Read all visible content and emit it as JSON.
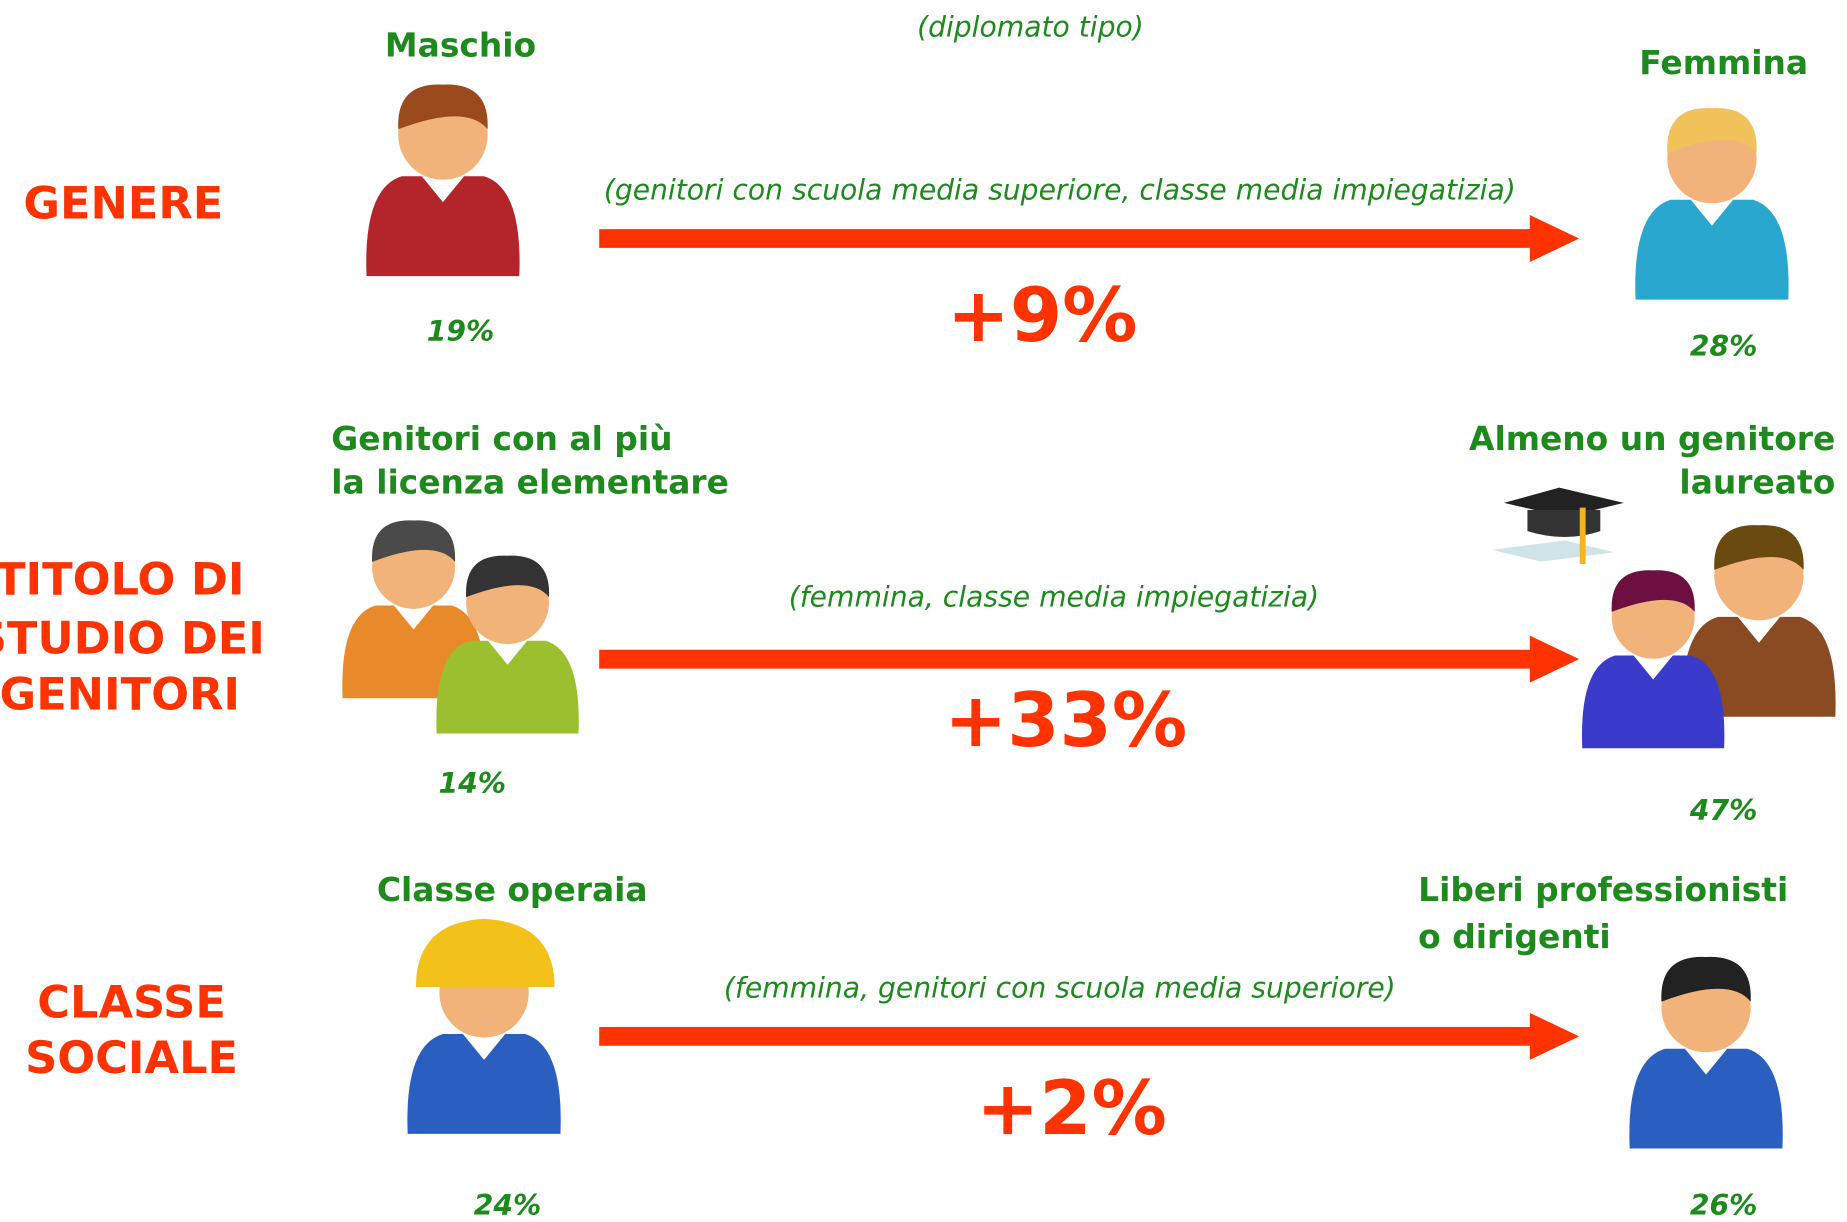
{
  "subtitle": "(diplomato tipo)",
  "rows": [
    {
      "category": [
        "GENERE"
      ],
      "left": {
        "label": [
          "Maschio"
        ],
        "percent": "19%"
      },
      "right": {
        "label": [
          "Femmina"
        ],
        "percent": "28%"
      },
      "note": "(genitori con scuola media superiore, classe media impiegatizia)",
      "difference": "+9%"
    },
    {
      "category": [
        "TITOLO DI",
        "STUDIO DEI",
        "GENITORI"
      ],
      "left": {
        "label": [
          "Genitori con al più",
          "la licenza elementare"
        ],
        "percent": "14%"
      },
      "right": {
        "label": [
          "Almeno un genitore",
          "laureato"
        ],
        "percent": "47%"
      },
      "note": "(femmina, classe media impiegatizia)",
      "difference": "+33%"
    },
    {
      "category": [
        "CLASSE",
        "SOCIALE"
      ],
      "left": {
        "label": [
          "Classe operaia"
        ],
        "percent": "24%"
      },
      "right": {
        "label": [
          "Liberi professionisti",
          "o dirigenti"
        ],
        "percent": "26%"
      },
      "note": "(femmina, genitori con scuola media superiore)",
      "difference": "+2%"
    }
  ]
}
